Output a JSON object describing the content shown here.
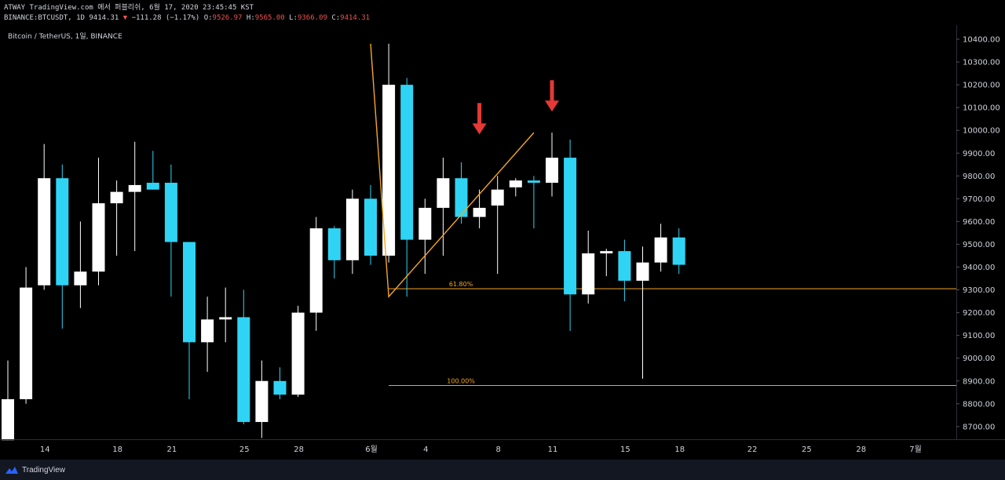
{
  "header": {
    "line1": "ATWAY TradingView.com 에서 퍼블리쉬, 6월 17, 2020 23:45:45 KST",
    "symbol": "BINANCE:BTCUSDT, 1D 9414.31",
    "down_arrow": "▼",
    "change": "−111.28 (−1.17%)",
    "o_label": "O:",
    "o_value": "9526.97",
    "h_label": "H:",
    "h_value": "9565.00",
    "l_label": "L:",
    "l_value": "9366.09",
    "c_label": "C:",
    "c_value": "9414.31"
  },
  "chart_title": "Bitcoin / TetherUS, 1일, BINANCE",
  "footer": {
    "brand": "TradingView",
    "logo_icon": "tradingview-logo-icon"
  },
  "colors": {
    "up": "#ffffff",
    "down": "#2fd4f5",
    "fib": "#f5a623",
    "arrow": "#e53935",
    "background": "#000000"
  },
  "chart_data": {
    "type": "candlestick",
    "y_axis": {
      "min": 8640,
      "max": 10460,
      "ticks": [
        10400,
        10300,
        10200,
        10100,
        10000,
        9900,
        9800,
        9700,
        9600,
        9500,
        9400,
        9300,
        9200,
        9100,
        9000,
        8900,
        8800,
        8700
      ]
    },
    "x_ticks": [
      {
        "label": "14",
        "index": 2
      },
      {
        "label": "18",
        "index": 6
      },
      {
        "label": "21",
        "index": 9
      },
      {
        "label": "25",
        "index": 13
      },
      {
        "label": "28",
        "index": 16
      },
      {
        "label": "6월",
        "index": 20
      },
      {
        "label": "4",
        "index": 23
      },
      {
        "label": "8",
        "index": 27
      },
      {
        "label": "11",
        "index": 30
      },
      {
        "label": "15",
        "index": 34
      },
      {
        "label": "18",
        "index": 37
      },
      {
        "label": "22",
        "index": 41
      },
      {
        "label": "25",
        "index": 44
      },
      {
        "label": "28",
        "index": 47
      },
      {
        "label": "7월",
        "index": 50
      }
    ],
    "candles": [
      {
        "o": 8640,
        "h": 8990,
        "l": 8640,
        "c": 8820
      },
      {
        "o": 8820,
        "h": 9400,
        "l": 8800,
        "c": 9310
      },
      {
        "o": 9320,
        "h": 9940,
        "l": 9300,
        "c": 9790
      },
      {
        "o": 9790,
        "h": 9850,
        "l": 9130,
        "c": 9320
      },
      {
        "o": 9320,
        "h": 9600,
        "l": 9220,
        "c": 9380
      },
      {
        "o": 9380,
        "h": 9880,
        "l": 9320,
        "c": 9680
      },
      {
        "o": 9680,
        "h": 9780,
        "l": 9450,
        "c": 9730
      },
      {
        "o": 9730,
        "h": 9950,
        "l": 9470,
        "c": 9760
      },
      {
        "o": 9770,
        "h": 9910,
        "l": 9740,
        "c": 9740
      },
      {
        "o": 9770,
        "h": 9850,
        "l": 9270,
        "c": 9510
      },
      {
        "o": 9510,
        "h": 9510,
        "l": 8820,
        "c": 9070
      },
      {
        "o": 9070,
        "h": 9270,
        "l": 8940,
        "c": 9170
      },
      {
        "o": 9170,
        "h": 9310,
        "l": 9070,
        "c": 9180
      },
      {
        "o": 9180,
        "h": 9300,
        "l": 8710,
        "c": 8720
      },
      {
        "o": 8720,
        "h": 8990,
        "l": 8650,
        "c": 8900
      },
      {
        "o": 8900,
        "h": 8960,
        "l": 8820,
        "c": 8840
      },
      {
        "o": 8840,
        "h": 9230,
        "l": 8830,
        "c": 9200
      },
      {
        "o": 9200,
        "h": 9620,
        "l": 9120,
        "c": 9570
      },
      {
        "o": 9570,
        "h": 9580,
        "l": 9350,
        "c": 9430
      },
      {
        "o": 9430,
        "h": 9740,
        "l": 9370,
        "c": 9700
      },
      {
        "o": 9700,
        "h": 9760,
        "l": 9410,
        "c": 9450
      },
      {
        "o": 9450,
        "h": 10380,
        "l": 9420,
        "c": 10200
      },
      {
        "o": 10200,
        "h": 10230,
        "l": 9270,
        "c": 9520
      },
      {
        "o": 9520,
        "h": 9700,
        "l": 9370,
        "c": 9660
      },
      {
        "o": 9660,
        "h": 9880,
        "l": 9450,
        "c": 9790
      },
      {
        "o": 9790,
        "h": 9860,
        "l": 9590,
        "c": 9620
      },
      {
        "o": 9620,
        "h": 9740,
        "l": 9570,
        "c": 9660
      },
      {
        "o": 9670,
        "h": 9800,
        "l": 9370,
        "c": 9740
      },
      {
        "o": 9750,
        "h": 9790,
        "l": 9710,
        "c": 9780
      },
      {
        "o": 9780,
        "h": 9800,
        "l": 9570,
        "c": 9770
      },
      {
        "o": 9770,
        "h": 9990,
        "l": 9710,
        "c": 9880
      },
      {
        "o": 9880,
        "h": 9960,
        "l": 9120,
        "c": 9280
      },
      {
        "o": 9280,
        "h": 9560,
        "l": 9240,
        "c": 9460
      },
      {
        "o": 9460,
        "h": 9480,
        "l": 9360,
        "c": 9470
      },
      {
        "o": 9470,
        "h": 9520,
        "l": 9250,
        "c": 9340
      },
      {
        "o": 9340,
        "h": 9490,
        "l": 8910,
        "c": 9420
      },
      {
        "o": 9420,
        "h": 9590,
        "l": 9380,
        "c": 9530
      },
      {
        "o": 9530,
        "h": 9570,
        "l": 9370,
        "c": 9410
      }
    ],
    "annotations": {
      "trend_line": [
        {
          "i": 20,
          "p": 10380
        },
        {
          "i": 21,
          "p": 9270
        },
        {
          "i": 29,
          "p": 9990
        }
      ],
      "fib_levels": [
        {
          "label": "61.80%",
          "price": 9305
        },
        {
          "label": "100.00%",
          "price": 8880
        }
      ],
      "fib_start_index": 21,
      "arrows": [
        {
          "i": 26,
          "p": 10120
        },
        {
          "i": 30,
          "p": 10220
        }
      ]
    }
  }
}
